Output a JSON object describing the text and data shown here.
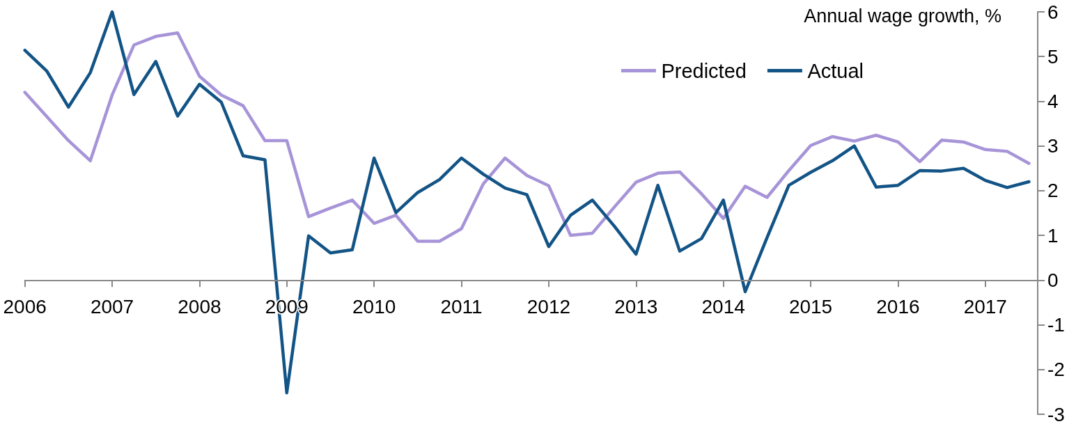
{
  "chart_data": {
    "type": "line",
    "ylabel": "Annual wage growth, %",
    "x": [
      2006,
      2006.25,
      2006.5,
      2006.75,
      2007,
      2007.25,
      2007.5,
      2007.75,
      2008,
      2008.25,
      2008.5,
      2008.75,
      2009,
      2009.25,
      2009.5,
      2009.75,
      2010,
      2010.25,
      2010.5,
      2010.75,
      2011,
      2011.25,
      2011.5,
      2011.75,
      2012,
      2012.25,
      2012.5,
      2012.75,
      2013,
      2013.25,
      2013.5,
      2013.75,
      2014,
      2014.25,
      2014.5,
      2014.75,
      2015,
      2015.25,
      2015.5,
      2015.75,
      2016,
      2016.25,
      2016.5,
      2016.75,
      2017,
      2017.25,
      2017.5
    ],
    "series": [
      {
        "name": "Predicted",
        "color": "#a794d8",
        "values": [
          4.2,
          3.66,
          3.12,
          2.67,
          4.14,
          5.26,
          5.45,
          5.53,
          4.56,
          4.14,
          3.9,
          3.12,
          3.12,
          1.42,
          1.61,
          1.79,
          1.27,
          1.45,
          0.87,
          0.87,
          1.15,
          2.15,
          2.73,
          2.34,
          2.11,
          1.0,
          1.05,
          1.63,
          2.19,
          2.39,
          2.42,
          1.93,
          1.38,
          2.1,
          1.85,
          2.45,
          3.01,
          3.21,
          3.11,
          3.24,
          3.09,
          2.65,
          3.13,
          3.09,
          2.92,
          2.88,
          2.61
        ]
      },
      {
        "name": "Actual",
        "color": "#135486",
        "values": [
          5.14,
          4.68,
          3.87,
          4.64,
          6.0,
          4.15,
          4.89,
          3.67,
          4.38,
          3.98,
          2.78,
          2.69,
          -2.52,
          0.99,
          0.61,
          0.68,
          2.73,
          1.51,
          1.96,
          2.25,
          2.73,
          2.37,
          2.06,
          1.91,
          0.75,
          1.45,
          1.79,
          1.21,
          0.58,
          2.12,
          0.65,
          0.93,
          1.79,
          -0.26,
          0.95,
          2.12,
          2.41,
          2.67,
          3.0,
          2.08,
          2.12,
          2.45,
          2.44,
          2.5,
          2.23,
          2.07,
          2.2
        ]
      }
    ],
    "xlim": [
      2006,
      2017.6
    ],
    "xticks": [
      2006,
      2007,
      2008,
      2009,
      2010,
      2011,
      2012,
      2013,
      2014,
      2015,
      2016,
      2017
    ],
    "ylim": [
      -3,
      6
    ],
    "yticks": [
      -3,
      -2,
      -1,
      0,
      1,
      2,
      3,
      4,
      5,
      6
    ],
    "grid": false,
    "legend": "top right",
    "marker": "none",
    "line_style": "solid"
  }
}
